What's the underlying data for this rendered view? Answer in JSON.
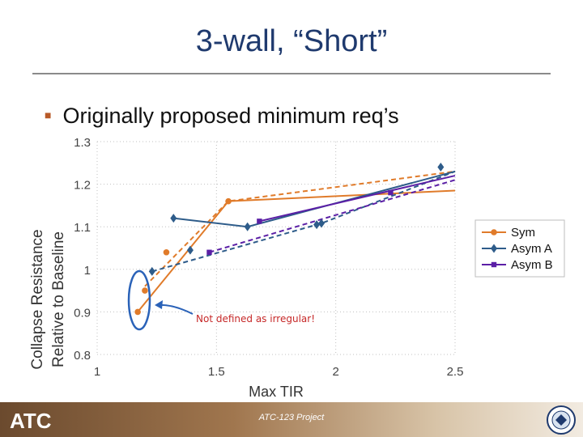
{
  "slide": {
    "title": "3-wall, “Short”",
    "bullet": "Originally proposed minimum req’s",
    "annotation": "Not defined as irregular!",
    "footer_text": "ATC-123 Project",
    "logo_text": "ATC"
  },
  "colors": {
    "sym": "#e07b2a",
    "asymA": "#2e5c8a",
    "asymB": "#5b1fa6",
    "annotation_red": "#c62828",
    "annotation_blue": "#2a62b8",
    "title": "#1f3a6e",
    "bullet_mark": "#b85a28"
  },
  "chart_data": {
    "type": "line",
    "xlabel": "Max TIR",
    "ylabel_line1": "Collapse Resistance",
    "ylabel_line2": "Relative to Baseline",
    "xlim": [
      1,
      2.5
    ],
    "ylim": [
      0.8,
      1.3
    ],
    "x_ticks": [
      "1",
      "1.5",
      "2",
      "2.5"
    ],
    "y_ticks": [
      "0.8",
      "0.9",
      "1",
      "1.1",
      "1.2",
      "1.3"
    ],
    "grid": true,
    "legend_position": "right",
    "series": [
      {
        "name": "Sym",
        "color_key": "sym",
        "marker": "circle",
        "points": [
          [
            1.17,
            0.9
          ],
          [
            1.2,
            0.95
          ],
          [
            1.29,
            1.04
          ],
          [
            1.55,
            1.16
          ]
        ],
        "solid_fit": [
          [
            1.17,
            0.9
          ],
          [
            1.55,
            1.16
          ],
          [
            2.5,
            1.185
          ]
        ],
        "dashed_fit": [
          [
            1.2,
            0.96
          ],
          [
            1.55,
            1.16
          ],
          [
            2.5,
            1.23
          ]
        ]
      },
      {
        "name": "Asym A",
        "color_key": "asymA",
        "marker": "diamond",
        "points": [
          [
            1.23,
            0.995
          ],
          [
            1.32,
            1.12
          ],
          [
            1.39,
            1.045
          ],
          [
            1.63,
            1.1
          ],
          [
            1.92,
            1.105
          ],
          [
            1.94,
            1.108
          ],
          [
            2.44,
            1.24
          ]
        ],
        "solid_fit": [
          [
            1.32,
            1.12
          ],
          [
            1.63,
            1.1
          ],
          [
            2.5,
            1.23
          ]
        ],
        "dashed_fit": [
          [
            1.23,
            0.995
          ],
          [
            1.94,
            1.108
          ],
          [
            2.5,
            1.23
          ]
        ]
      },
      {
        "name": "Asym B",
        "color_key": "asymB",
        "marker": "square",
        "points": [
          [
            1.47,
            1.04
          ],
          [
            1.68,
            1.113
          ],
          [
            2.23,
            1.18
          ]
        ],
        "solid_fit": [
          [
            1.68,
            1.113
          ],
          [
            2.5,
            1.22
          ]
        ],
        "dashed_fit": [
          [
            1.47,
            1.04
          ],
          [
            2.5,
            1.21
          ]
        ]
      }
    ]
  }
}
